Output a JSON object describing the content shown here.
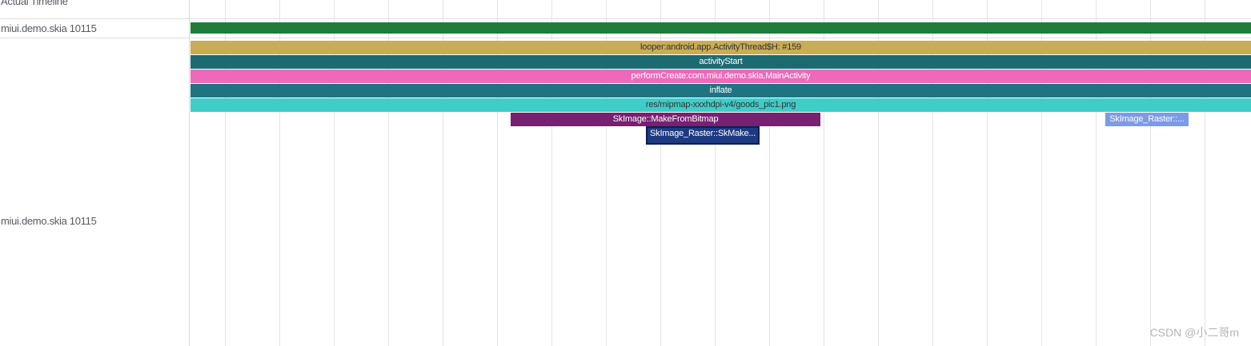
{
  "tracks": {
    "actual_timeline_label": "Actual Timeline",
    "process_label": "miui.demo.skia 10115",
    "thread_label": "miui.demo.skia 10115"
  },
  "process_bar_color": "#1e7d3a",
  "slices": [
    {
      "id": "looper",
      "label": "looper:android.app.ActivityThread$H: #159",
      "color": "#c9ad55",
      "text_color": "#333333"
    },
    {
      "id": "activity-start",
      "label": "activityStart",
      "color": "#1d6b72",
      "text_color": "#ffffff"
    },
    {
      "id": "perform-create",
      "label": "performCreate:com.miui.demo.skia.MainActivity",
      "color": "#ec6ab9",
      "text_color": "#ffffff"
    },
    {
      "id": "inflate",
      "label": "inflate",
      "color": "#1f7482",
      "text_color": "#ffffff"
    },
    {
      "id": "res-goods-pic",
      "label": "res/mipmap-xxxhdpi-v4/goods_pic1.png",
      "color": "#3ecdc8",
      "text_color": "#333333"
    },
    {
      "id": "skimage-makefrombitmap",
      "label": "SkImage::MakeFromBitmap",
      "color": "#762171",
      "text_color": "#ffffff"
    },
    {
      "id": "skimage-raster-right",
      "label": "SkImage_Raster::...",
      "color": "#7b9be6",
      "text_color": "#ffffff"
    },
    {
      "id": "skimage-raster-selected",
      "label": "SkImage_Raster::SkMake...",
      "color": "#1d3a82",
      "text_color": "#ffffff"
    }
  ],
  "watermark": "CSDN @小二哥m"
}
